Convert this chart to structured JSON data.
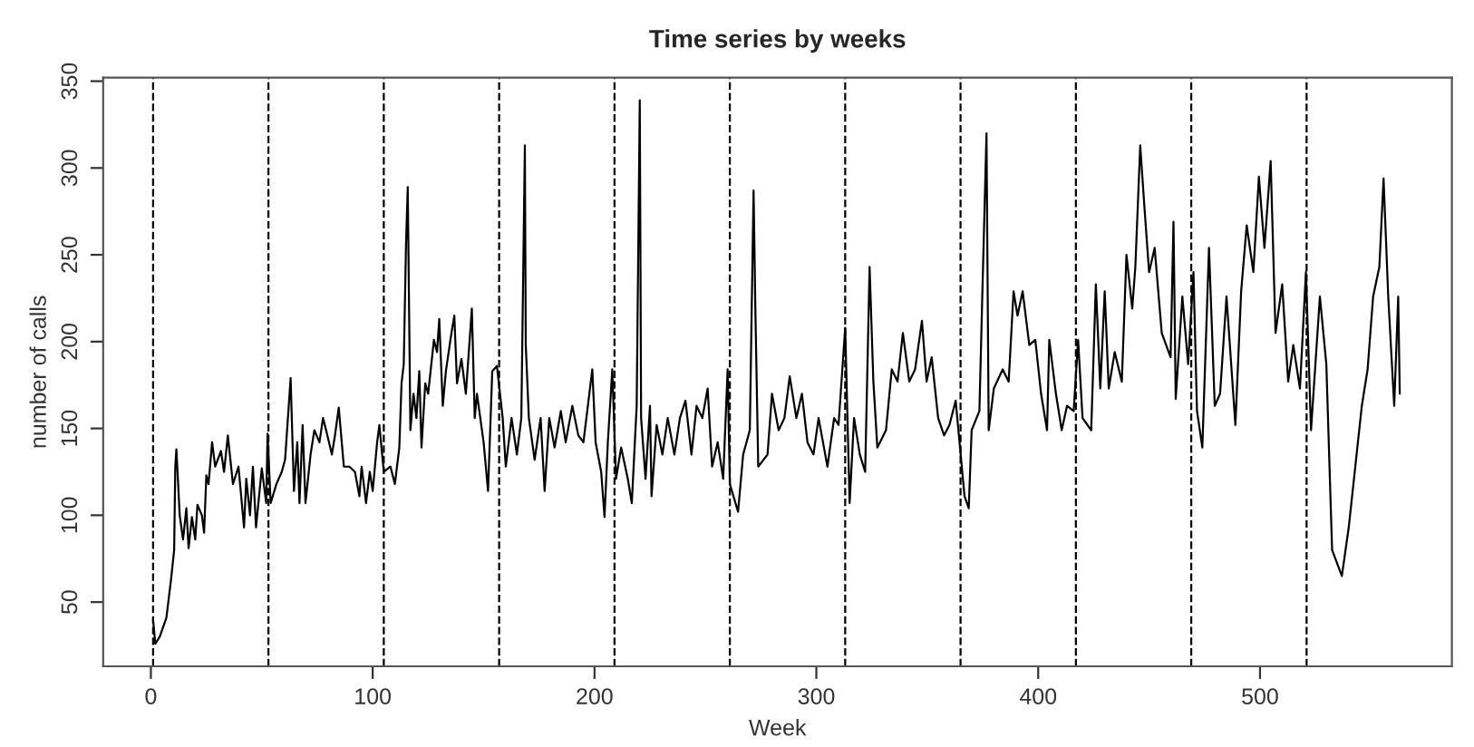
{
  "chart_data": {
    "type": "line",
    "title": "Time series by weeks",
    "xlabel": "Week",
    "ylabel": "number of calls",
    "xlim": [
      -21.5,
      586.5
    ],
    "ylim": [
      13,
      352
    ],
    "xticks": [
      0,
      100,
      200,
      300,
      400,
      500
    ],
    "yticks": [
      50,
      100,
      150,
      200,
      250,
      300,
      350
    ],
    "grid": false,
    "legend": false,
    "marker": "none",
    "line_style": "solid",
    "series": [
      {
        "color": "#000000",
        "x": [
          1,
          2,
          4,
          7,
          9,
          10.5,
          11,
          11.5,
          13,
          14.5,
          16,
          17,
          18.5,
          20,
          21,
          23,
          24,
          25,
          26,
          27.6,
          29,
          31.6,
          33,
          34.7,
          37,
          39.5,
          42,
          43,
          44.7,
          46,
          47.4,
          50,
          52,
          52.6,
          54,
          56.6,
          59,
          60.5,
          63,
          64.5,
          66,
          67,
          68.4,
          69.7,
          72,
          73.7,
          76,
          77.6,
          79,
          81.6,
          83,
          84.7,
          87,
          89.5,
          92,
          94,
          95,
          97,
          98.7,
          100,
          102,
          103,
          105,
          108,
          110,
          112,
          113,
          114,
          115,
          115.8,
          117,
          118.4,
          119.7,
          121,
          122,
          123.7,
          125,
          127.6,
          129,
          130,
          131.6,
          133,
          135.5,
          136.8,
          138,
          140,
          142,
          144.7,
          146,
          147,
          150,
          152,
          153.9,
          156,
          158.6,
          160,
          162.6,
          165,
          167,
          168.6,
          169,
          170.4,
          173,
          175.7,
          177.5,
          179.6,
          182,
          184.8,
          187,
          190,
          192.7,
          195,
          199,
          200.5,
          203,
          204.5,
          206,
          208,
          209.7,
          212,
          215,
          216.8,
          219,
          220.4,
          221,
          223,
          225,
          225.7,
          228,
          230.6,
          233,
          236,
          238.5,
          241,
          243.7,
          246,
          248.6,
          251,
          253,
          255.5,
          258,
          260,
          261,
          264.7,
          267,
          270,
          271.7,
          272.5,
          273.8,
          278,
          280,
          283,
          285.6,
          288,
          291,
          293.5,
          296,
          298.7,
          301,
          305,
          308,
          310,
          313,
          315,
          317,
          319.6,
          322,
          324,
          325.7,
          327.5,
          331.4,
          334,
          336.6,
          339,
          341.9,
          344.5,
          347.6,
          349.7,
          352,
          354.9,
          357.6,
          360,
          362.8,
          366.8,
          368.7,
          370,
          373.5,
          374.8,
          376.7,
          377.7,
          380,
          384,
          386.7,
          388.9,
          390.7,
          393,
          396,
          398.7,
          401.3,
          404,
          405,
          408,
          410.6,
          413,
          416,
          418,
          420,
          423.9,
          426,
          428,
          430,
          431.8,
          434.5,
          437.7,
          439.8,
          442.4,
          443.8,
          446,
          447.7,
          450,
          452.5,
          455.7,
          459.7,
          461,
          462,
          465,
          467.6,
          470,
          471.6,
          474,
          477,
          479.6,
          482,
          484.9,
          488.9,
          491.5,
          494,
          497,
          499.5,
          502,
          504.8,
          507,
          510,
          512.7,
          515,
          518,
          520.7,
          523,
          527,
          529.9,
          532.5,
          536.9,
          540,
          545.9,
          548.5,
          551,
          553.8,
          555.7,
          557.8,
          560.5,
          562.3,
          563
        ],
        "values": [
          40,
          26,
          30,
          41,
          62,
          80,
          128,
          138,
          100,
          86,
          104,
          81,
          99,
          86,
          106,
          100,
          90,
          123,
          118,
          142,
          128,
          137,
          125,
          146,
          118,
          128,
          93,
          121,
          100,
          128,
          93,
          127,
          107,
          147,
          107,
          118,
          125,
          132,
          179,
          114,
          142,
          107,
          152,
          107,
          135,
          149,
          142,
          156,
          149,
          135,
          146,
          162,
          128,
          128,
          125,
          111,
          128,
          107,
          125,
          114,
          142,
          152,
          125,
          128,
          118,
          139,
          176,
          187,
          255,
          289,
          149,
          170,
          156,
          183,
          139,
          176,
          170,
          201,
          194,
          213,
          163,
          183,
          205,
          215,
          176,
          190,
          170,
          219,
          156,
          170,
          142,
          114,
          183,
          186,
          156,
          128,
          156,
          135,
          156,
          313,
          198,
          156,
          132,
          156,
          114,
          156,
          139,
          160,
          142,
          163,
          146,
          142,
          184,
          142,
          125,
          99,
          142,
          184,
          121,
          139,
          121,
          107,
          163,
          339,
          156,
          121,
          163,
          111,
          152,
          135,
          156,
          135,
          156,
          166,
          135,
          163,
          156,
          173,
          128,
          142,
          121,
          184,
          118,
          102,
          135,
          149,
          287,
          219,
          128,
          135,
          170,
          149,
          156,
          180,
          156,
          170,
          142,
          135,
          156,
          128,
          156,
          152,
          208,
          107,
          156,
          135,
          125,
          243,
          177,
          139,
          149,
          184,
          177,
          205,
          177,
          184,
          212,
          177,
          191,
          156,
          146,
          152,
          166,
          111,
          104,
          149,
          160,
          226,
          320,
          149,
          173,
          184,
          177,
          229,
          215,
          229,
          198,
          201,
          170,
          149,
          201,
          170,
          149,
          163,
          160,
          201,
          156,
          149,
          233,
          173,
          229,
          173,
          194,
          177,
          250,
          219,
          243,
          313,
          281,
          240,
          254,
          205,
          191,
          269,
          167,
          226,
          187,
          240,
          160,
          139,
          254,
          163,
          170,
          226,
          152,
          229,
          267,
          240,
          295,
          254,
          304,
          205,
          233,
          177,
          198,
          173,
          240,
          149,
          226,
          187,
          80,
          65,
          93,
          163,
          184,
          226,
          243,
          294,
          226,
          163,
          226,
          170
        ]
      }
    ],
    "ref_lines": [
      {
        "axis": "x",
        "value": 1,
        "line_style": "dashed",
        "color": "#000000"
      },
      {
        "axis": "x",
        "value": 53,
        "line_style": "dashed",
        "color": "#000000"
      },
      {
        "axis": "x",
        "value": 105,
        "line_style": "dashed",
        "color": "#000000"
      },
      {
        "axis": "x",
        "value": 157,
        "line_style": "dashed",
        "color": "#000000"
      },
      {
        "axis": "x",
        "value": 209,
        "line_style": "dashed",
        "color": "#000000"
      },
      {
        "axis": "x",
        "value": 261,
        "line_style": "dashed",
        "color": "#000000"
      },
      {
        "axis": "x",
        "value": 313,
        "line_style": "dashed",
        "color": "#000000"
      },
      {
        "axis": "x",
        "value": 365,
        "line_style": "dashed",
        "color": "#000000"
      },
      {
        "axis": "x",
        "value": 417,
        "line_style": "dashed",
        "color": "#000000"
      },
      {
        "axis": "x",
        "value": 469,
        "line_style": "dashed",
        "color": "#000000"
      },
      {
        "axis": "x",
        "value": 521,
        "line_style": "dashed",
        "color": "#000000"
      }
    ]
  }
}
